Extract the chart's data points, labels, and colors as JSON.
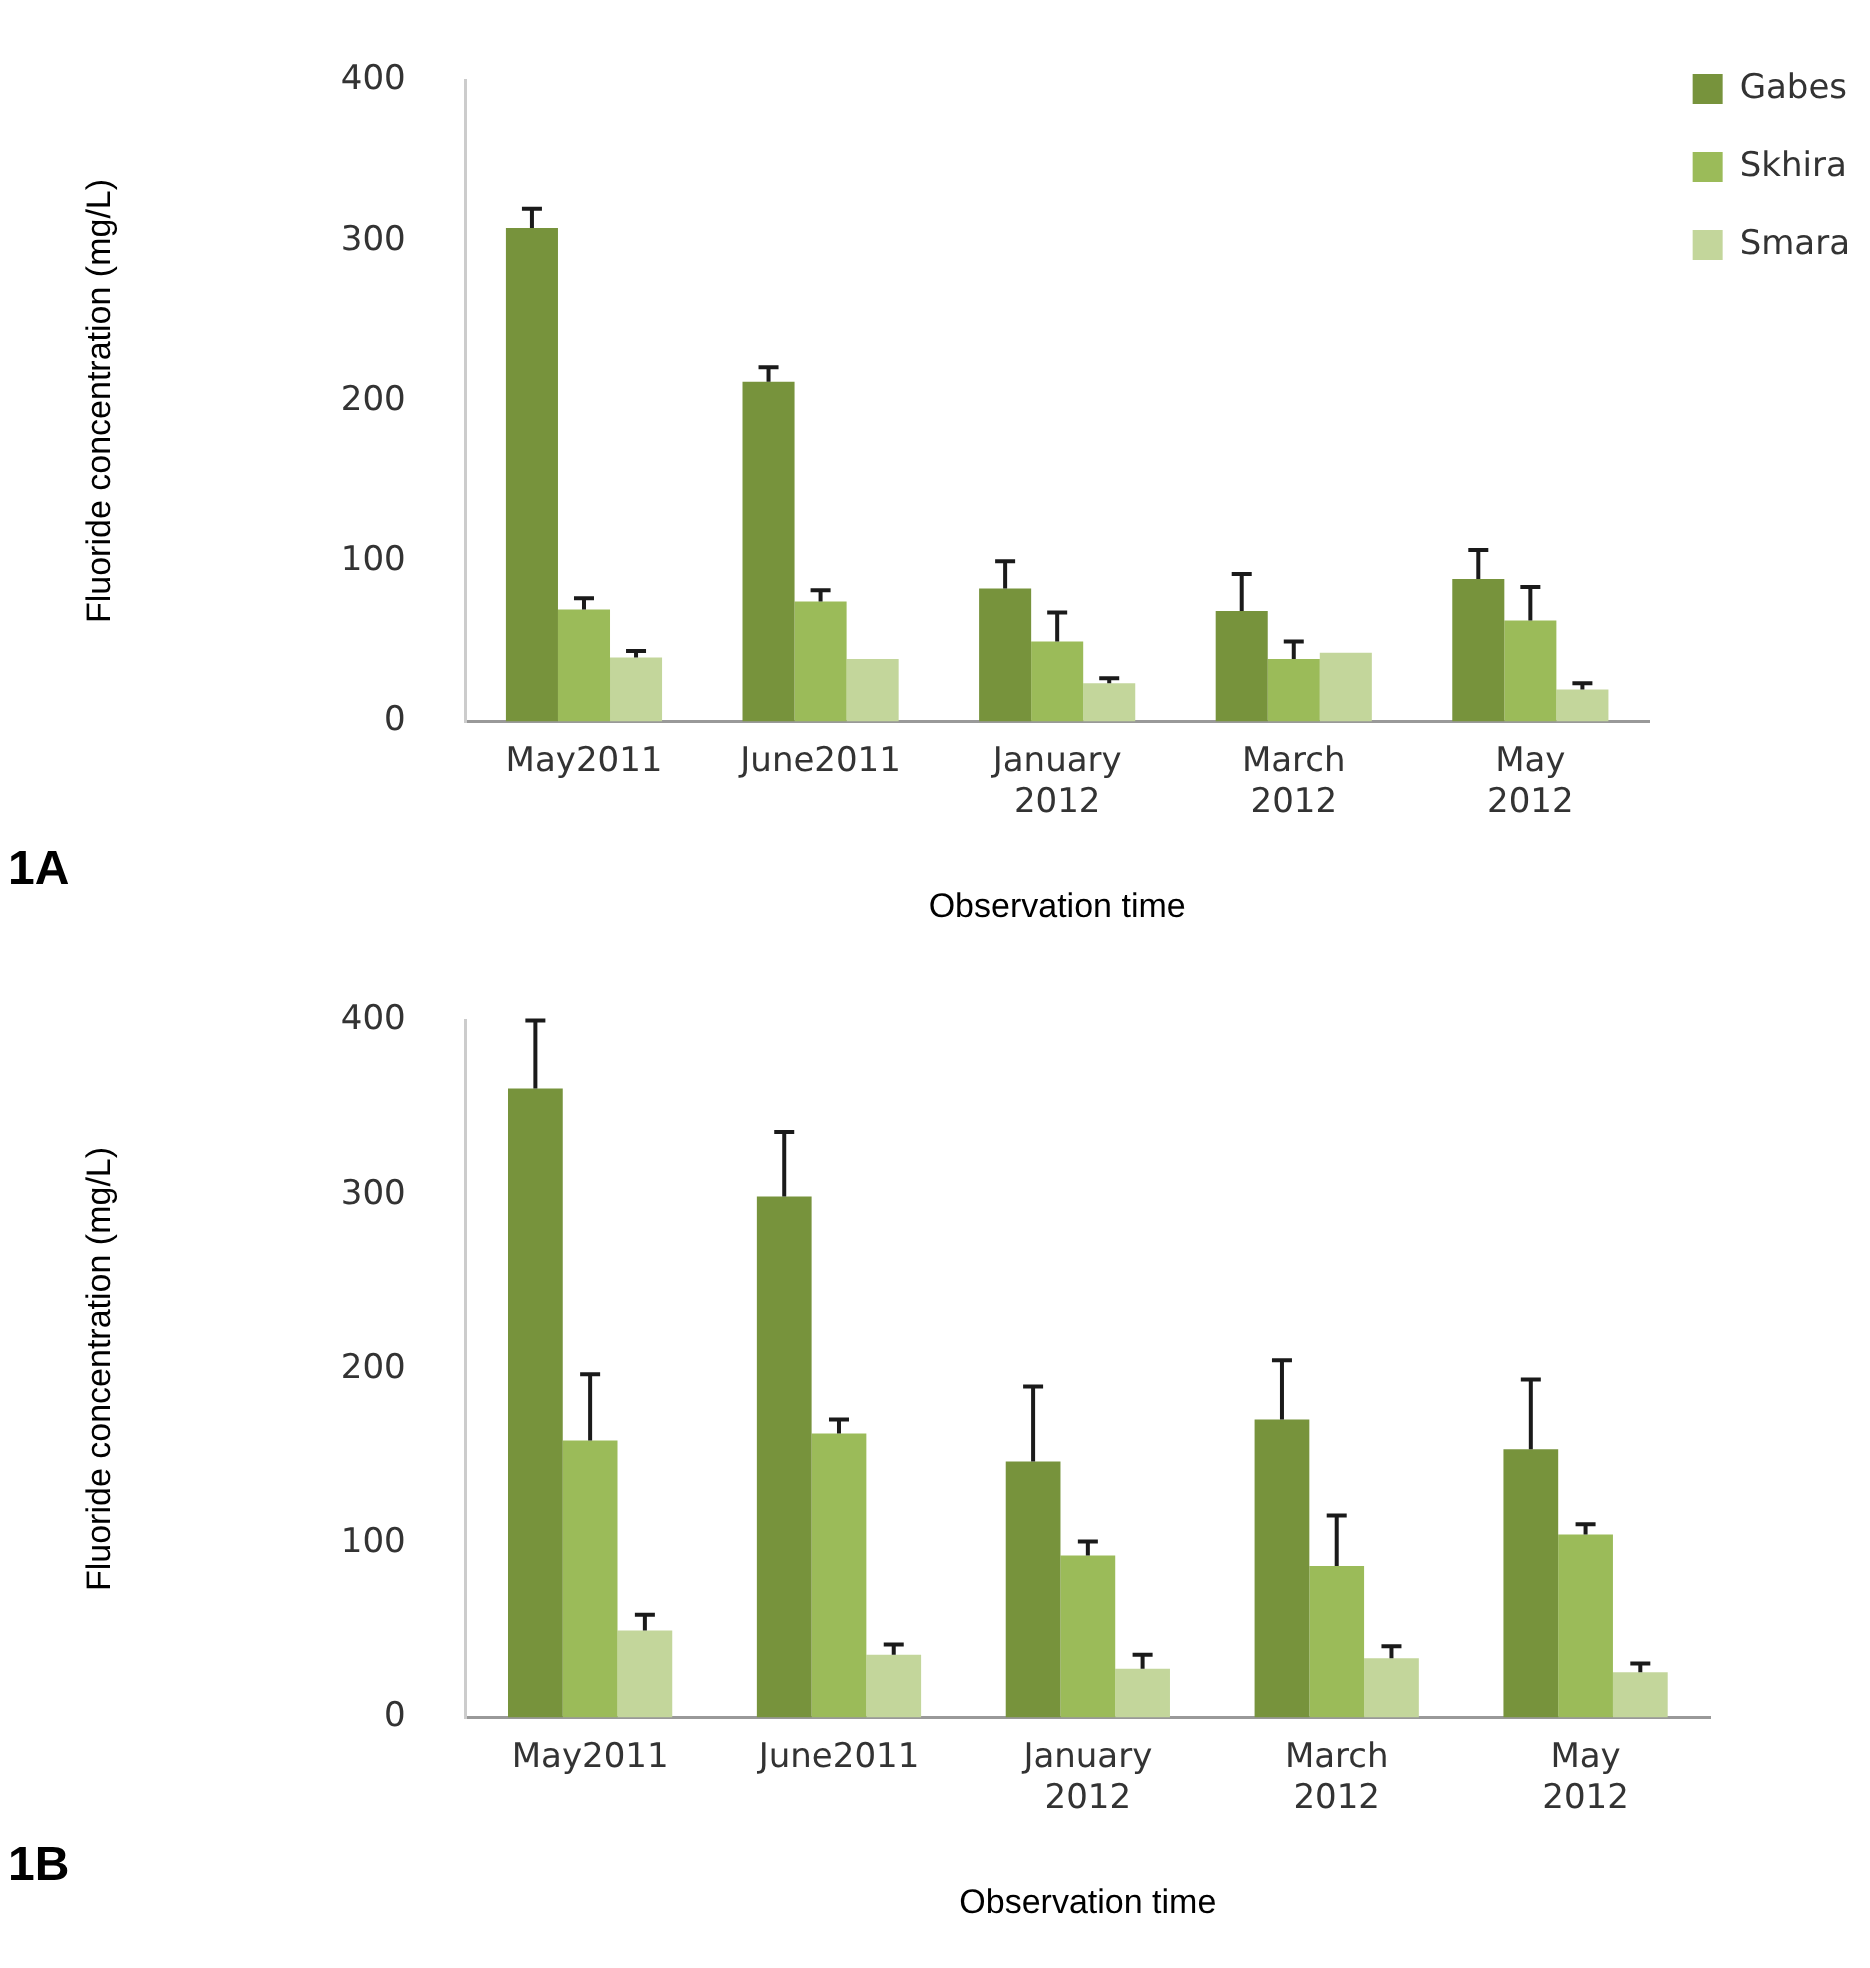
{
  "chart_data": [
    {
      "type": "bar",
      "xlabel": "Observation time",
      "ylabel": "Fluoride concentration (mg/L)",
      "categories": [
        "May2011",
        "June2011",
        "January 2012",
        "March 2012",
        "May 2012"
      ],
      "ylim": [
        0,
        400
      ],
      "yticks": [
        0,
        100,
        200,
        300,
        400
      ],
      "legend": "right",
      "annotations": [
        "1A"
      ],
      "series": [
        {
          "name": "Gabes",
          "color": "#77933c",
          "values": [
            308,
            212,
            83,
            69,
            89
          ],
          "errors": [
            [
              308,
              320
            ],
            [
              212,
              221
            ],
            [
              83,
              100
            ],
            [
              69,
              92
            ],
            [
              89,
              107
            ]
          ]
        },
        {
          "name": "Skhira",
          "color": "#9bbb59",
          "values": [
            70,
            75,
            50,
            39,
            63
          ],
          "errors": [
            [
              70,
              77
            ],
            [
              75,
              82
            ],
            [
              50,
              68
            ],
            [
              39,
              50
            ],
            [
              63,
              84
            ]
          ]
        },
        {
          "name": "Smara",
          "color": "#c3d69b",
          "values": [
            40,
            39,
            24,
            43,
            20
          ],
          "errors": [
            [
              40,
              44
            ],
            null,
            [
              24,
              27
            ],
            null,
            [
              20,
              24
            ]
          ]
        }
      ]
    },
    {
      "type": "bar",
      "xlabel": "Observation time",
      "ylabel": "Fluoride concentration (mg/L)",
      "categories": [
        "May2011",
        "June2011",
        "January 2012",
        "March 2012",
        "May 2012"
      ],
      "ylim": [
        0,
        400
      ],
      "yticks": [
        0,
        100,
        200,
        300,
        400
      ],
      "annotations": [
        "1B"
      ],
      "series": [
        {
          "color": "#77933c",
          "values": [
            361,
            299,
            147,
            171,
            154
          ],
          "errors": [
            [
              361,
              400
            ],
            [
              299,
              336
            ],
            [
              147,
              190
            ],
            [
              171,
              205
            ],
            [
              154,
              194
            ]
          ]
        },
        {
          "color": "#9bbb59",
          "values": [
            159,
            163,
            93,
            87,
            105
          ],
          "errors": [
            [
              159,
              197
            ],
            [
              163,
              171
            ],
            [
              93,
              101
            ],
            [
              87,
              116
            ],
            [
              105,
              111
            ]
          ]
        },
        {
          "color": "#c3d69b",
          "values": [
            50,
            36,
            28,
            34,
            26
          ],
          "errors": [
            [
              50,
              59
            ],
            [
              36,
              42
            ],
            [
              28,
              36
            ],
            [
              34,
              41
            ],
            [
              26,
              31
            ]
          ]
        }
      ]
    }
  ]
}
